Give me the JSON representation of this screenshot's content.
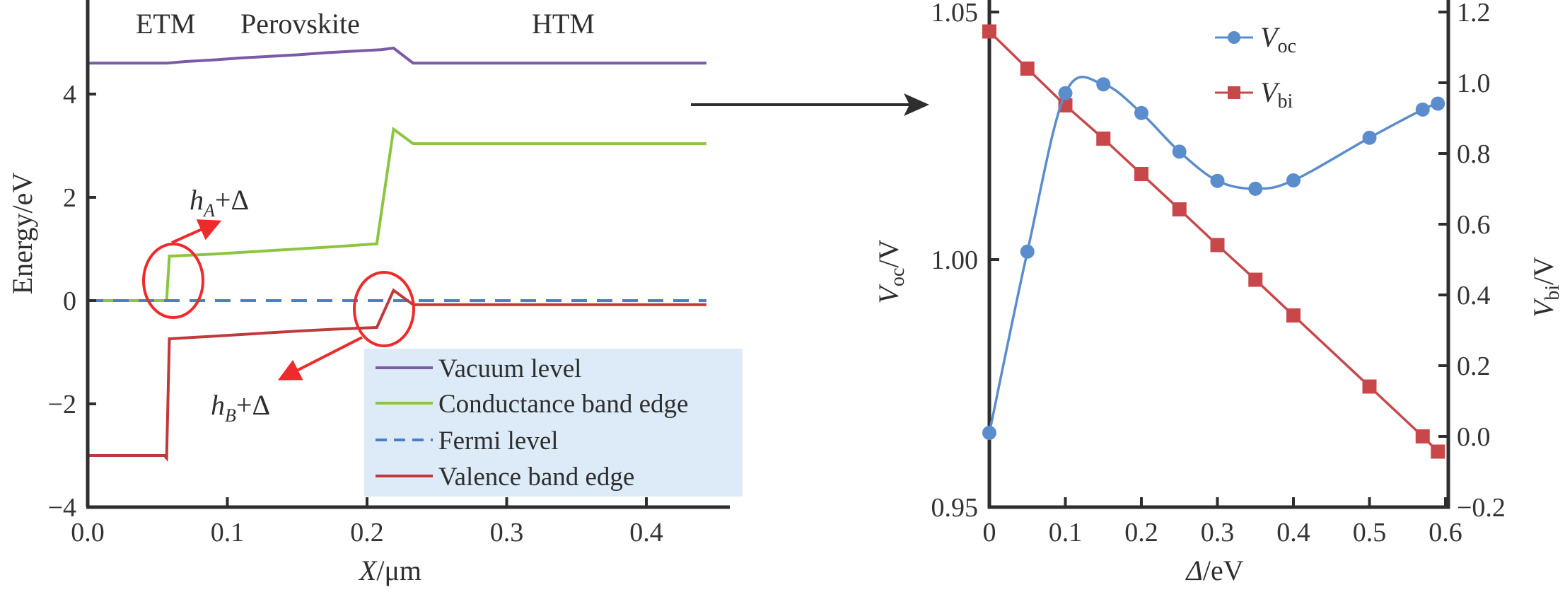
{
  "colors": {
    "vacuum": "#7b5aa6",
    "conduction": "#8cc540",
    "fermi": "#4a7fc8",
    "valence": "#c0393b",
    "voc": "#5b8ccc",
    "vbi": "#c8474a",
    "legend_bg": "#dcebf7",
    "annotation": "#ee2a2a",
    "axis": "#2e2e2e"
  },
  "chart_data": [
    {
      "type": "line",
      "title": "",
      "xlabel": {
        "var": "X",
        "unit": "/μm"
      },
      "ylabel": "Energy/eV",
      "xlim": [
        0,
        0.45
      ],
      "ylim": [
        -4,
        5.8
      ],
      "xticks": [
        "0.0",
        "0.1",
        "0.2",
        "0.3",
        "0.4"
      ],
      "xtick_values": [
        0,
        0.1,
        0.2,
        0.3,
        0.4
      ],
      "yticks": [
        "4",
        "2",
        "0",
        "−2",
        "−4"
      ],
      "ytick_values": [
        4,
        2,
        0,
        -2,
        -4
      ],
      "regions": [
        "ETM",
        "Perovskite",
        "HTM"
      ],
      "legend_placement": "bottom-right",
      "series": [
        {
          "name": "Vacuum level",
          "key": "vacuum",
          "dash": false,
          "points": [
            [
              0,
              4.6
            ],
            [
              0.057,
              4.6
            ],
            [
              0.07,
              4.63
            ],
            [
              0.09,
              4.66
            ],
            [
              0.11,
              4.7
            ],
            [
              0.13,
              4.73
            ],
            [
              0.15,
              4.76
            ],
            [
              0.17,
              4.8
            ],
            [
              0.19,
              4.83
            ],
            [
              0.21,
              4.86
            ],
            [
              0.219,
              4.89
            ],
            [
              0.233,
              4.6
            ],
            [
              0.443,
              4.6
            ]
          ]
        },
        {
          "name": "Conductance band edge",
          "key": "conduction",
          "dash": false,
          "points": [
            [
              0,
              0
            ],
            [
              0.0565,
              0
            ],
            [
              0.0585,
              0.86
            ],
            [
              0.09,
              0.9
            ],
            [
              0.12,
              0.95
            ],
            [
              0.15,
              1.0
            ],
            [
              0.18,
              1.05
            ],
            [
              0.207,
              1.1
            ],
            [
              0.219,
              3.32
            ],
            [
              0.233,
              3.04
            ],
            [
              0.443,
              3.04
            ]
          ]
        },
        {
          "name": "Fermi level",
          "key": "fermi",
          "dash": true,
          "points": [
            [
              0,
              0
            ],
            [
              0.443,
              0
            ]
          ]
        },
        {
          "name": "Valence band edge",
          "key": "valence",
          "dash": false,
          "points": [
            [
              0,
              -3.0
            ],
            [
              0.055,
              -3.0
            ],
            [
              0.0565,
              -3.05
            ],
            [
              0.0585,
              -0.74
            ],
            [
              0.09,
              -0.69
            ],
            [
              0.12,
              -0.64
            ],
            [
              0.15,
              -0.59
            ],
            [
              0.18,
              -0.55
            ],
            [
              0.207,
              -0.52
            ],
            [
              0.219,
              0.2
            ],
            [
              0.233,
              -0.08
            ],
            [
              0.443,
              -0.08
            ]
          ]
        }
      ],
      "annotations": [
        {
          "var": "h",
          "sub": "A",
          "text": "+Δ"
        },
        {
          "var": "h",
          "sub": "B",
          "text": "+Δ"
        }
      ]
    },
    {
      "type": "line",
      "title": "",
      "xlabel": {
        "var": "Δ",
        "unit": "/eV"
      },
      "ylabel_left": {
        "var": "V",
        "sub": "oc",
        "unit": "/V"
      },
      "ylabel_right": {
        "var": "V",
        "sub": "bi",
        "unit": "/V"
      },
      "xlim": [
        0,
        0.6
      ],
      "ylim_left": [
        0.95,
        1.05
      ],
      "ylim_right": [
        -0.2,
        1.2
      ],
      "xticks": [
        "0",
        "0.1",
        "0.2",
        "0.3",
        "0.4",
        "0.5",
        "0.6"
      ],
      "xtick_values": [
        0,
        0.1,
        0.2,
        0.3,
        0.4,
        0.5,
        0.6
      ],
      "yticks_left": [
        "1.05",
        "1.00",
        "0.95"
      ],
      "ytick_left_values": [
        1.05,
        1.0,
        0.95
      ],
      "yticks_right": [
        "1.2",
        "1.0",
        "0.8",
        "0.6",
        "0.4",
        "0.2",
        "0.0",
        "−0.2"
      ],
      "ytick_right_values": [
        1.2,
        1.0,
        0.8,
        0.6,
        0.4,
        0.2,
        0.0,
        -0.2
      ],
      "legend_placement": "top-center",
      "x": [
        0,
        0.05,
        0.1,
        0.15,
        0.2,
        0.25,
        0.3,
        0.35,
        0.4,
        0.5,
        0.57,
        0.59
      ],
      "series": [
        {
          "name": {
            "var": "V",
            "sub": "oc"
          },
          "key": "voc",
          "axis": "left",
          "marker": "circle",
          "smooth": true,
          "values": [
            0.965,
            1.0016,
            1.0336,
            1.0354,
            1.0296,
            1.0218,
            1.0159,
            1.0143,
            1.016,
            1.0246,
            1.0303,
            1.0315
          ]
        },
        {
          "name": {
            "var": "V",
            "sub": "bi"
          },
          "key": "vbi",
          "axis": "right",
          "marker": "square",
          "smooth": false,
          "values": [
            1.145,
            1.04,
            0.936,
            0.842,
            0.742,
            0.642,
            0.541,
            0.443,
            0.342,
            0.141,
            0.0,
            -0.043
          ]
        }
      ]
    }
  ]
}
